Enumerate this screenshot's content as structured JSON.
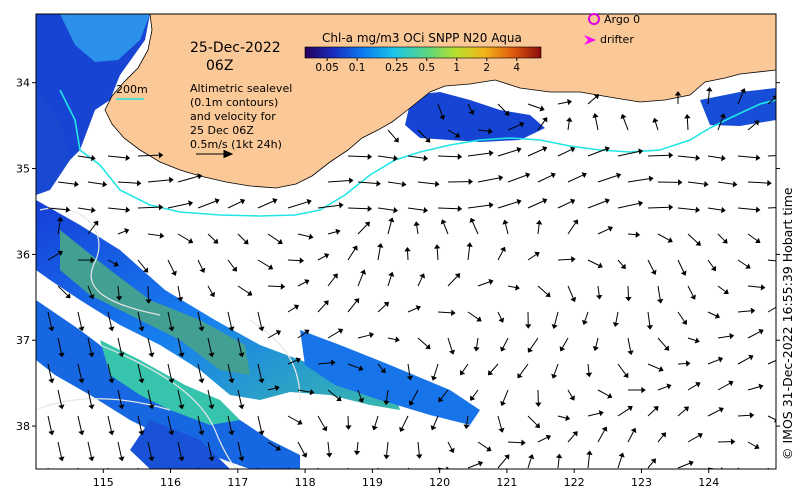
{
  "map": {
    "date": "25-Dec-2022",
    "hour": "06Z",
    "sst_contour_label": "200m",
    "altimetry_note": [
      "Altimetric sealevel",
      "(0.1m contours)",
      "and velocity for",
      "25 Dec 06Z",
      "0.5m/s (1kt 24h)"
    ],
    "colorbar_title": "Chl-a mg/m3 OCi SNPP N20 Aqua",
    "colorbar_ticks": [
      "0.05",
      "0.1",
      "0.25",
      "0.5",
      "1",
      "2",
      "4"
    ],
    "legend": {
      "argo": "Argo 0",
      "drifter": "drifter"
    },
    "credit": "© IMOS 31-Dec-2022 16:55:39 Hobart time",
    "lon_ticks": [
      "115",
      "116",
      "117",
      "118",
      "119",
      "120",
      "121",
      "122",
      "123",
      "124"
    ],
    "lat_ticks": [
      "34",
      "35",
      "36",
      "37",
      "38"
    ],
    "extent": {
      "lon": [
        114.0,
        125.0
      ],
      "lat": [
        -38.5,
        -33.2
      ]
    },
    "colors": {
      "land": "#fbc998",
      "contour_200m": "#22e5e5",
      "argo": "#e000e0",
      "drifter": "#ff00ff"
    }
  }
}
